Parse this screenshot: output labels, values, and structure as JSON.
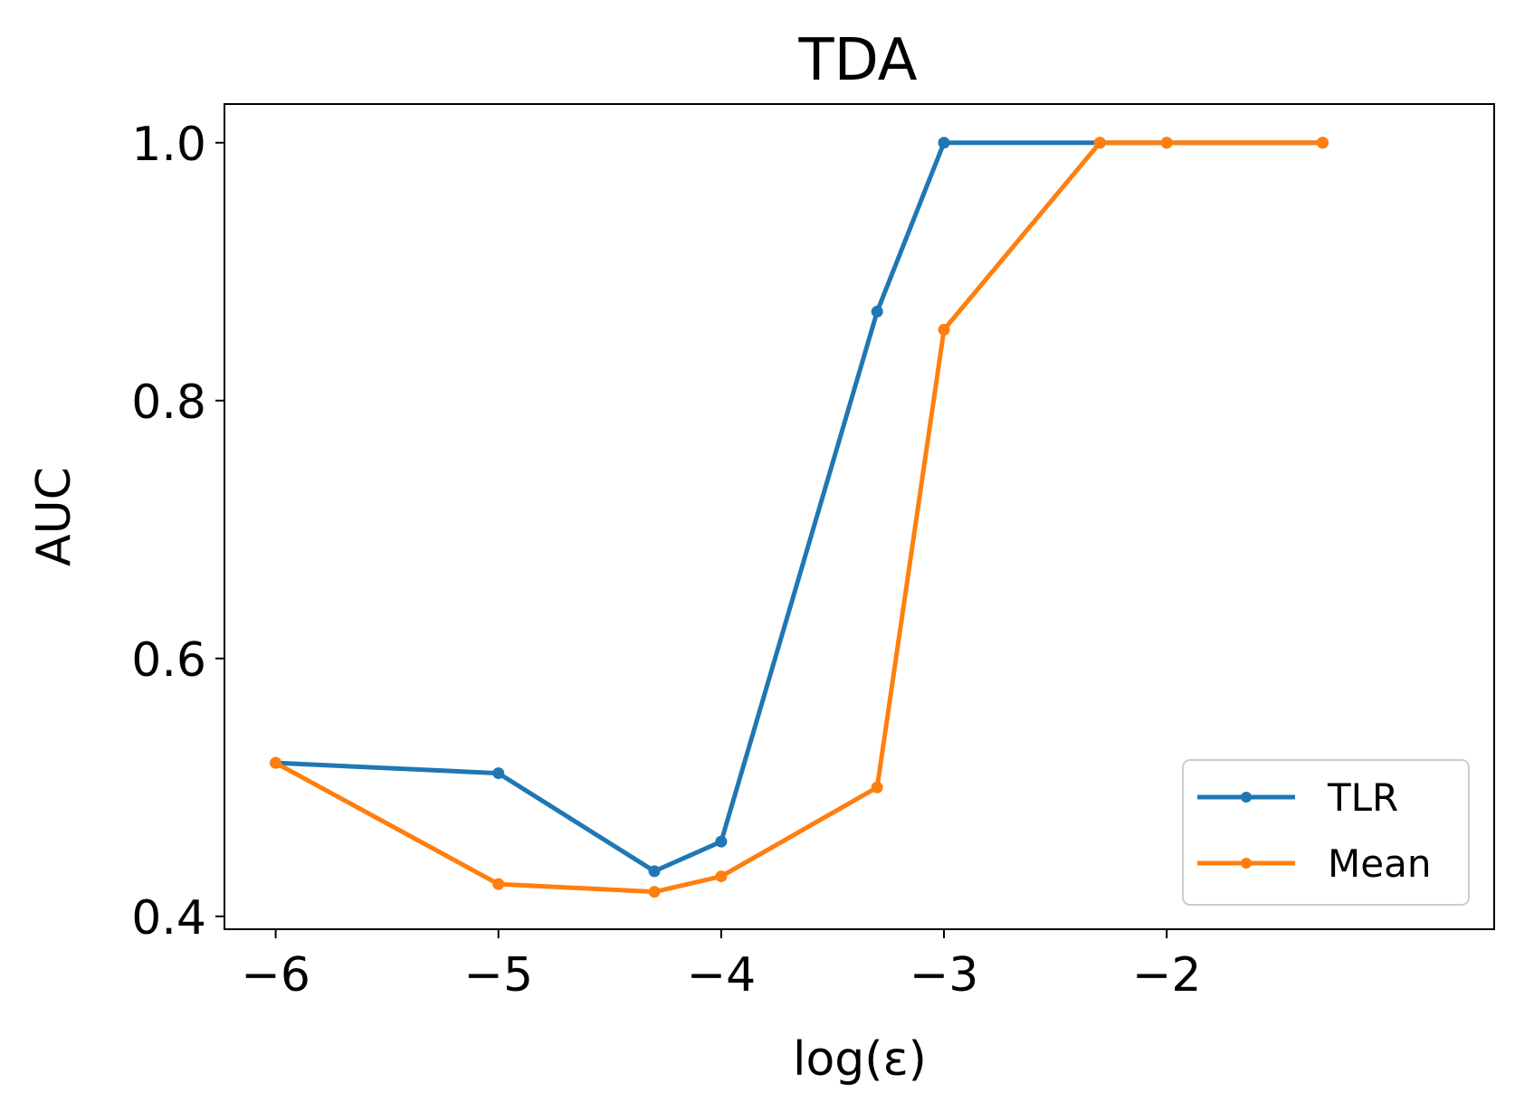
{
  "chart_data": {
    "type": "line",
    "title": "TDA",
    "xlabel": "log(ε)",
    "ylabel": "AUC",
    "xlim": [
      -6.23,
      -0.53
    ],
    "ylim": [
      0.39,
      1.03
    ],
    "xticks": [
      -6,
      -5,
      -4,
      -3,
      -2
    ],
    "xtick_labels": [
      "−6",
      "−5",
      "−4",
      "−3",
      "−2"
    ],
    "yticks": [
      0.4,
      0.6,
      0.8,
      1.0
    ],
    "ytick_labels": [
      "0.4",
      "0.6",
      "0.8",
      "1.0"
    ],
    "legend_position": "lower-right",
    "x": [
      -6,
      -5,
      -4.3,
      -4,
      -3.3,
      -3,
      -2.3,
      -2,
      -1.3
    ],
    "series": [
      {
        "name": "TLR",
        "color": "#1f77b4",
        "values": [
          0.519,
          0.511,
          0.435,
          0.458,
          0.869,
          1.0,
          1.0,
          1.0,
          1.0
        ]
      },
      {
        "name": "Mean",
        "color": "#ff7f0e",
        "values": [
          0.519,
          0.425,
          0.419,
          0.431,
          0.5,
          0.855,
          1.0,
          1.0,
          1.0
        ]
      }
    ],
    "grid": false
  }
}
